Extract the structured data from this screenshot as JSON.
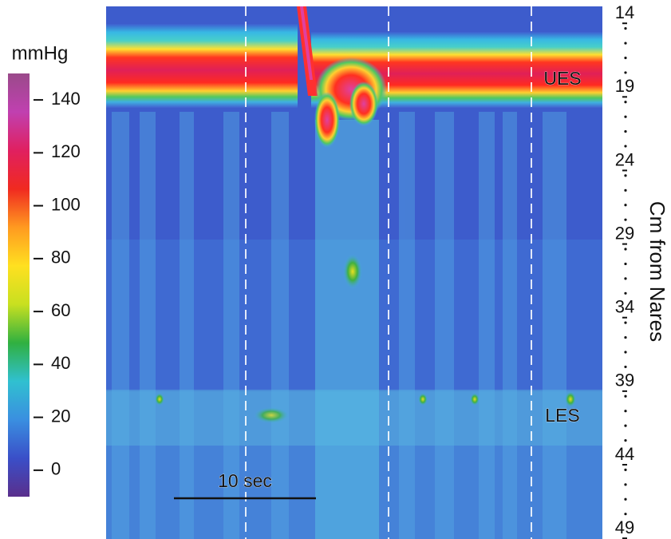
{
  "chart_data": {
    "type": "heatmap",
    "ylabel": "Cm from Nares",
    "ylim": [
      13.5,
      49.7
    ],
    "yticks": [
      14,
      19,
      24,
      29,
      34,
      39,
      44,
      49
    ],
    "yminorticks": [
      15,
      16,
      17,
      18,
      20,
      21,
      22,
      23,
      25,
      26,
      27,
      28,
      30,
      31,
      32,
      33,
      35,
      36,
      37,
      38,
      40,
      41,
      42,
      43,
      45,
      46,
      47,
      48
    ],
    "colorbar": {
      "label": "mmHg",
      "lim": [
        -10,
        150
      ],
      "ticks": [
        0,
        20,
        40,
        60,
        80,
        100,
        120,
        140
      ],
      "colors": [
        "#5a2f8c",
        "#3a4fc8",
        "#3a8fe0",
        "#30c0d0",
        "#30b040",
        "#c8e020",
        "#ffe020",
        "#ff9a20",
        "#f02a20",
        "#e02060",
        "#c040b0",
        "#9a4a8a"
      ]
    },
    "annotations": [
      "UES",
      "LES",
      "10 sec"
    ]
  }
}
